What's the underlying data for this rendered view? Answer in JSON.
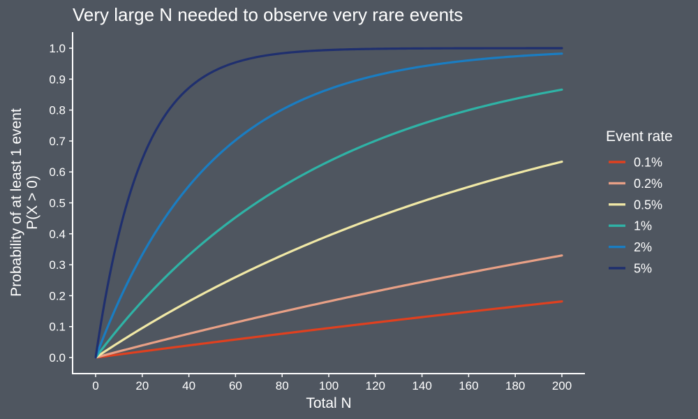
{
  "chart_data": {
    "type": "line",
    "title": "Very large N needed to observe very rare events",
    "xlabel": "Total N",
    "ylabel_lines": [
      "Probability of at least 1 event",
      "P(X > 0)"
    ],
    "xlim": [
      0,
      200
    ],
    "ylim": [
      0,
      1
    ],
    "x_ticks": [
      0,
      20,
      40,
      60,
      80,
      100,
      120,
      140,
      160,
      180,
      200
    ],
    "y_ticks": [
      "0.0",
      "0.1",
      "0.2",
      "0.3",
      "0.4",
      "0.5",
      "0.6",
      "0.7",
      "0.8",
      "0.9",
      "1.0"
    ],
    "grid": false,
    "legend": {
      "title": "Event rate",
      "position": "right"
    },
    "x": [
      0,
      20,
      40,
      60,
      80,
      100,
      120,
      140,
      160,
      180,
      200
    ],
    "series": [
      {
        "name": "0.1%",
        "color": "#e0401f",
        "values": [
          0,
          0.02,
          0.039,
          0.058,
          0.077,
          0.095,
          0.113,
          0.131,
          0.148,
          0.165,
          0.181
        ]
      },
      {
        "name": "0.2%",
        "color": "#e8a086",
        "values": [
          0,
          0.039,
          0.077,
          0.113,
          0.148,
          0.181,
          0.213,
          0.244,
          0.274,
          0.302,
          0.33
        ]
      },
      {
        "name": "0.5%",
        "color": "#f0e8a6",
        "values": [
          0,
          0.095,
          0.182,
          0.26,
          0.33,
          0.394,
          0.452,
          0.504,
          0.551,
          0.594,
          0.633
        ]
      },
      {
        "name": "1%",
        "color": "#2fb3a6",
        "values": [
          0,
          0.182,
          0.331,
          0.453,
          0.552,
          0.634,
          0.701,
          0.755,
          0.8,
          0.836,
          0.866
        ]
      },
      {
        "name": "2%",
        "color": "#1a7dc2",
        "values": [
          0,
          0.332,
          0.554,
          0.702,
          0.801,
          0.867,
          0.911,
          0.941,
          0.96,
          0.974,
          0.982
        ]
      },
      {
        "name": "5%",
        "color": "#1f2f6e",
        "values": [
          0,
          0.642,
          0.871,
          0.954,
          0.984,
          0.994,
          0.998,
          0.999,
          1.0,
          1.0,
          1.0
        ]
      }
    ]
  }
}
